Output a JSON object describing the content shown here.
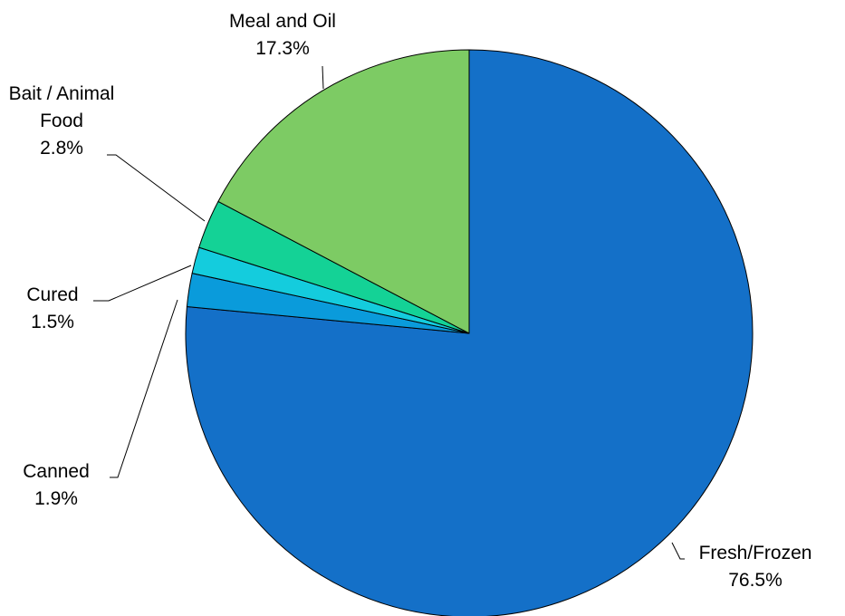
{
  "chart_data": {
    "type": "pie",
    "title": "",
    "start_angle_deg": 0,
    "direction": "clockwise",
    "slices": [
      {
        "id": "fresh-frozen",
        "label_lines": [
          "Fresh/Frozen"
        ],
        "value": 76.5,
        "value_label": "76.5%",
        "color": "#1470C8"
      },
      {
        "id": "canned",
        "label_lines": [
          "Canned"
        ],
        "value": 1.9,
        "value_label": "1.9%",
        "color": "#0A9BDB"
      },
      {
        "id": "cured",
        "label_lines": [
          "Cured"
        ],
        "value": 1.5,
        "value_label": "1.5%",
        "color": "#14CCDD"
      },
      {
        "id": "bait-animal-food",
        "label_lines": [
          "Bait / Animal",
          "Food"
        ],
        "value": 2.8,
        "value_label": "2.8%",
        "color": "#14D296"
      },
      {
        "id": "meal-and-oil",
        "label_lines": [
          "Meal and Oil"
        ],
        "value": 17.3,
        "value_label": "17.3%",
        "color": "#7DCB64"
      }
    ]
  }
}
